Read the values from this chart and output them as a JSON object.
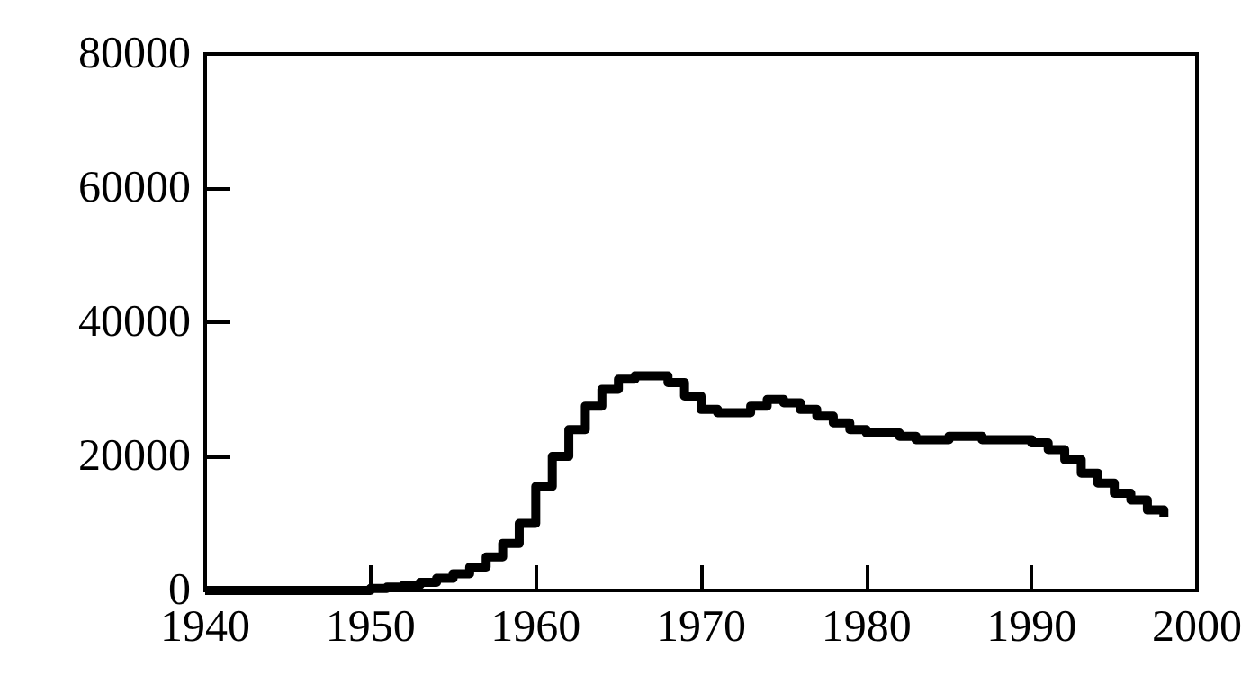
{
  "chart_data": {
    "type": "step",
    "color": "#000000",
    "x": [
      1940,
      1941,
      1942,
      1943,
      1944,
      1945,
      1946,
      1947,
      1948,
      1949,
      1950,
      1951,
      1952,
      1953,
      1954,
      1955,
      1956,
      1957,
      1958,
      1959,
      1960,
      1961,
      1962,
      1963,
      1964,
      1965,
      1966,
      1967,
      1968,
      1969,
      1970,
      1971,
      1972,
      1973,
      1974,
      1975,
      1976,
      1977,
      1978,
      1979,
      1980,
      1981,
      1982,
      1983,
      1984,
      1985,
      1986,
      1987,
      1988,
      1989,
      1990,
      1991,
      1992,
      1993,
      1994,
      1995,
      1996,
      1997,
      1998
    ],
    "values": [
      0,
      0,
      0,
      0,
      0,
      0,
      0,
      0,
      0,
      0,
      300,
      500,
      800,
      1200,
      1800,
      2500,
      3500,
      5000,
      7000,
      10000,
      15500,
      20000,
      24000,
      27500,
      30000,
      31500,
      32000,
      32000,
      31000,
      29000,
      27000,
      26500,
      26500,
      27500,
      28500,
      28000,
      27000,
      26000,
      25000,
      24000,
      23500,
      23500,
      23000,
      22500,
      22500,
      23000,
      23000,
      22500,
      22500,
      22500,
      22000,
      21000,
      19500,
      17500,
      16000,
      14500,
      13500,
      12000,
      11000
    ],
    "xlim": [
      1940,
      2000
    ],
    "xticks": [
      1940,
      1950,
      1960,
      1970,
      1980,
      1990,
      2000
    ],
    "ylim": [
      0,
      80000
    ],
    "yticks": [
      0,
      20000,
      40000,
      60000,
      80000
    ],
    "grid": false,
    "marker": "none",
    "line_style": "solid"
  }
}
